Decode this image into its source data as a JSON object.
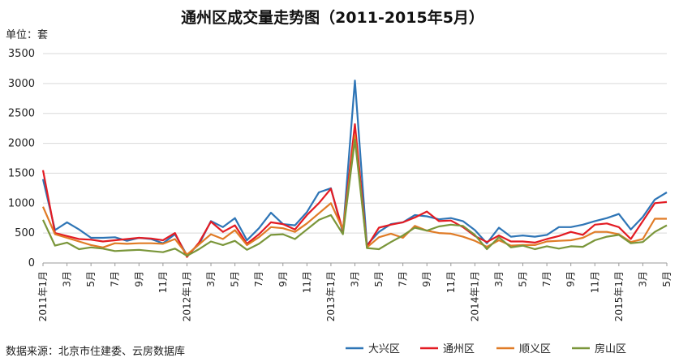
{
  "chart_data": {
    "type": "line",
    "title": "通州区成交量走势图（2011-2015年5月）",
    "unit_label": "单位：套",
    "source": "数据来源：北京市住建委、云房数据库",
    "ylim": [
      0,
      3500
    ],
    "yticks": [
      0,
      500,
      1000,
      1500,
      2000,
      2500,
      3000,
      3500
    ],
    "grid": "horizontal",
    "legend_position": "bottom-right",
    "x_tick_labels": [
      {
        "i": 0,
        "label": "2011年1月"
      },
      {
        "i": 2,
        "label": "3月"
      },
      {
        "i": 4,
        "label": "5月"
      },
      {
        "i": 6,
        "label": "7月"
      },
      {
        "i": 8,
        "label": "9月"
      },
      {
        "i": 10,
        "label": "11月"
      },
      {
        "i": 12,
        "label": "2012年1月"
      },
      {
        "i": 14,
        "label": "3月"
      },
      {
        "i": 16,
        "label": "5月"
      },
      {
        "i": 18,
        "label": "7月"
      },
      {
        "i": 20,
        "label": "9月"
      },
      {
        "i": 22,
        "label": "11月"
      },
      {
        "i": 24,
        "label": "2013年1月"
      },
      {
        "i": 26,
        "label": "3月"
      },
      {
        "i": 28,
        "label": "5月"
      },
      {
        "i": 30,
        "label": "7月"
      },
      {
        "i": 32,
        "label": "9月"
      },
      {
        "i": 34,
        "label": "11月"
      },
      {
        "i": 36,
        "label": "2014年1月"
      },
      {
        "i": 38,
        "label": "3月"
      },
      {
        "i": 40,
        "label": "5月"
      },
      {
        "i": 42,
        "label": "7月"
      },
      {
        "i": 44,
        "label": "9月"
      },
      {
        "i": 46,
        "label": "11月"
      },
      {
        "i": 48,
        "label": "2015年1月"
      },
      {
        "i": 50,
        "label": "3月"
      },
      {
        "i": 52,
        "label": "5月"
      }
    ],
    "series": [
      {
        "name": "大兴区",
        "color": "#2E75B6",
        "values": [
          1400,
          550,
          680,
          560,
          420,
          420,
          430,
          370,
          420,
          400,
          330,
          480,
          130,
          310,
          700,
          600,
          750,
          380,
          580,
          840,
          650,
          630,
          850,
          1180,
          1250,
          500,
          3050,
          300,
          520,
          650,
          680,
          800,
          780,
          730,
          750,
          700,
          550,
          330,
          590,
          440,
          460,
          440,
          470,
          600,
          600,
          640,
          700,
          750,
          820,
          560,
          770,
          1060,
          1180
        ]
      },
      {
        "name": "通州区",
        "color": "#E31B23",
        "values": [
          1550,
          500,
          450,
          400,
          390,
          360,
          380,
          400,
          420,
          410,
          380,
          500,
          100,
          340,
          690,
          520,
          630,
          320,
          480,
          680,
          650,
          560,
          800,
          1000,
          1240,
          540,
          2320,
          270,
          590,
          640,
          680,
          760,
          860,
          700,
          710,
          600,
          450,
          350,
          460,
          360,
          360,
          340,
          400,
          450,
          520,
          470,
          640,
          660,
          600,
          400,
          700,
          1000,
          1020
        ]
      },
      {
        "name": "顺义区",
        "color": "#E07B26",
        "values": [
          940,
          480,
          420,
          360,
          300,
          260,
          330,
          320,
          330,
          330,
          320,
          400,
          140,
          310,
          480,
          400,
          550,
          300,
          430,
          600,
          580,
          520,
          660,
          830,
          1000,
          560,
          2130,
          260,
          430,
          490,
          420,
          620,
          540,
          500,
          490,
          440,
          370,
          270,
          380,
          290,
          300,
          300,
          360,
          370,
          380,
          420,
          520,
          520,
          480,
          350,
          400,
          740,
          740
        ]
      },
      {
        "name": "房山区",
        "color": "#7A963A",
        "values": [
          720,
          290,
          340,
          230,
          260,
          240,
          200,
          210,
          220,
          200,
          180,
          240,
          120,
          230,
          360,
          300,
          370,
          220,
          320,
          470,
          480,
          400,
          560,
          720,
          800,
          480,
          2060,
          250,
          230,
          350,
          460,
          590,
          540,
          610,
          640,
          620,
          470,
          230,
          430,
          260,
          290,
          230,
          280,
          240,
          280,
          270,
          380,
          440,
          470,
          330,
          350,
          520,
          630
        ]
      }
    ]
  }
}
